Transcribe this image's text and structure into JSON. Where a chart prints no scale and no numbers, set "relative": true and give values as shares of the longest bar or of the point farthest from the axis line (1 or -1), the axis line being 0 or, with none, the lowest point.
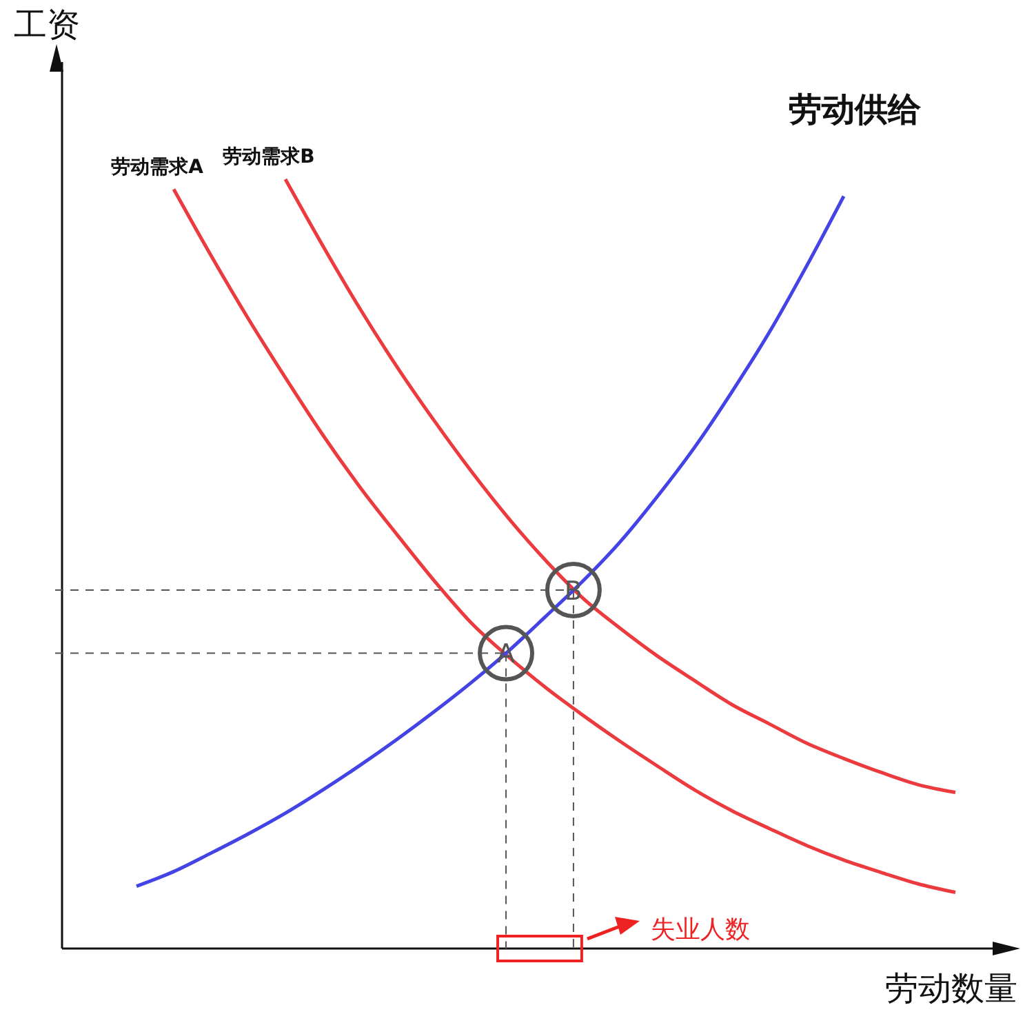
{
  "chart_data": {
    "type": "line",
    "relative": true,
    "xlabel": "劳动数量",
    "ylabel": "工资",
    "categories": [
      null,
      null,
      null,
      null,
      null,
      null,
      null,
      null,
      null,
      null,
      null,
      null,
      null,
      null,
      null,
      null,
      null,
      null,
      null,
      null,
      null,
      null,
      null,
      null,
      null,
      null
    ],
    "series": [
      {
        "name": "劳动需求A",
        "color": "#ec3b3f",
        "values": [
          null,
          null,
          null,
          0.987,
          0.901,
          0.819,
          0.742,
          0.668,
          0.6,
          0.538,
          0.478,
          0.423,
          0.379,
          0.339,
          0.303,
          0.269,
          0.237,
          0.206,
          0.179,
          0.156,
          0.134,
          0.115,
          0.099,
          0.084,
          0.073,
          null
        ]
      },
      {
        "name": "劳动需求B",
        "color": "#ec3b3f",
        "values": [
          null,
          null,
          null,
          null,
          null,
          null,
          1.0,
          0.914,
          0.832,
          0.756,
          0.686,
          0.62,
          0.559,
          0.504,
          0.455,
          0.416,
          0.38,
          0.348,
          0.317,
          0.292,
          0.267,
          0.247,
          0.229,
          0.213,
          0.203,
          null
        ]
      },
      {
        "name": "劳动供给",
        "color": "#4444e6",
        "values": [
          null,
          null,
          0.081,
          0.1,
          0.124,
          0.149,
          0.176,
          0.206,
          0.238,
          0.272,
          0.308,
          0.346,
          0.387,
          0.432,
          0.478,
          0.529,
          0.588,
          0.652,
          0.724,
          0.801,
          0.887,
          0.978,
          null,
          null,
          null,
          null
        ]
      }
    ],
    "ref_lines": [
      {
        "axis": "y",
        "value": 0.384,
        "color": "#555555",
        "line_style": "dashed"
      },
      {
        "axis": "y",
        "value": 0.466,
        "color": "#555555",
        "line_style": "dashed"
      }
    ],
    "annotations": [
      {
        "text": "A",
        "y": 0.384
      },
      {
        "text": "B",
        "y": 0.466
      },
      "失业人数"
    ],
    "line_style": "solid"
  }
}
